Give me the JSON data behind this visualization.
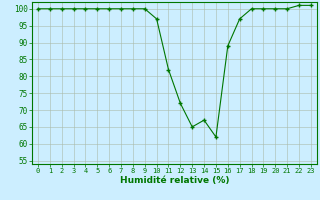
{
  "x": [
    0,
    1,
    2,
    3,
    4,
    5,
    6,
    7,
    8,
    9,
    10,
    11,
    12,
    13,
    14,
    15,
    16,
    17,
    18,
    19,
    20,
    21,
    22,
    23
  ],
  "y": [
    100,
    100,
    100,
    100,
    100,
    100,
    100,
    100,
    100,
    100,
    97,
    82,
    72,
    65,
    67,
    62,
    89,
    97,
    100,
    100,
    100,
    100,
    101,
    101
  ],
  "line_color": "#007700",
  "marker": "+",
  "bg_color": "#cceeff",
  "grid_color": "#aabbaa",
  "grid_color_minor": "#ccddcc",
  "xlabel": "Humidité relative (%)",
  "xlabel_color": "#007700",
  "tick_color": "#007700",
  "spine_color": "#007700",
  "ylim": [
    54,
    102
  ],
  "xlim": [
    -0.5,
    23.5
  ],
  "yticks": [
    55,
    60,
    65,
    70,
    75,
    80,
    85,
    90,
    95,
    100
  ],
  "xticks": [
    0,
    1,
    2,
    3,
    4,
    5,
    6,
    7,
    8,
    9,
    10,
    11,
    12,
    13,
    14,
    15,
    16,
    17,
    18,
    19,
    20,
    21,
    22,
    23
  ],
  "figsize": [
    3.2,
    2.0
  ],
  "dpi": 100
}
